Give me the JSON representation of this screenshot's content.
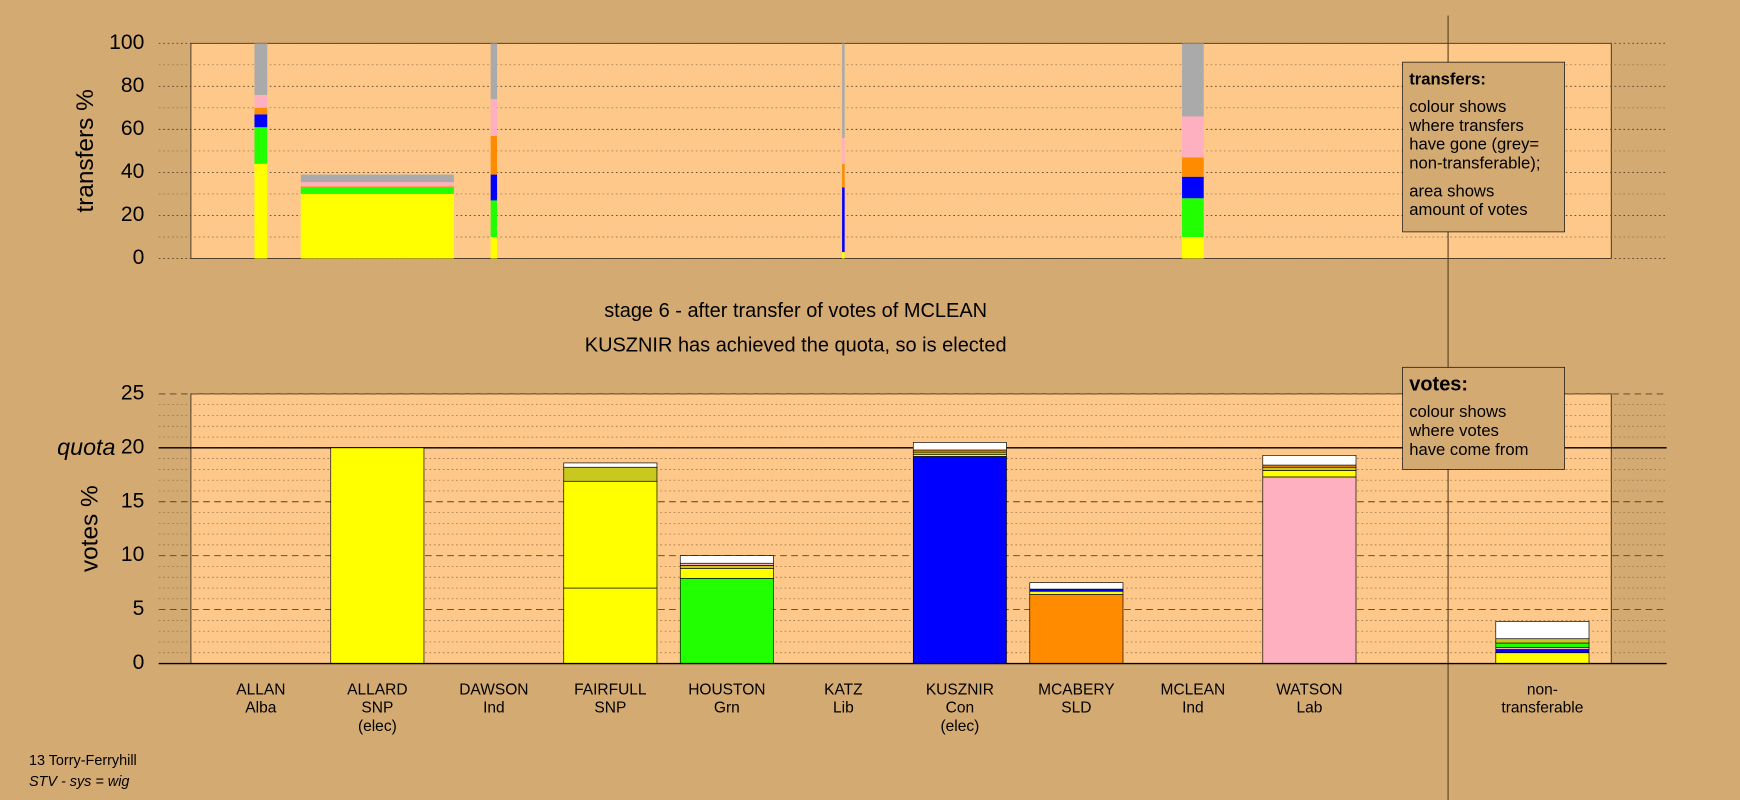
{
  "stage_lines": [
    "stage 6 - after transfer of votes of MCLEAN",
    "KUSZNIR has achieved the quota, so is elected"
  ],
  "footer": [
    "13 Torry-Ferryhill",
    "STV - sys = wig"
  ],
  "chart_data": [
    {
      "type": "transfer-bar",
      "ylabel": "transfers %",
      "ylim": [
        0,
        100
      ],
      "yticks": [
        0,
        20,
        40,
        60,
        80,
        100
      ],
      "minor_yticks": [
        10,
        30,
        50,
        70,
        90
      ],
      "transfer_amounts": [
        1,
        12,
        0.5,
        0,
        0,
        0.2,
        0,
        0,
        1.7,
        0
      ],
      "series": [
        {
          "color": "#ffff00",
          "values": [
            44,
            30,
            10,
            null,
            null,
            3,
            null,
            null,
            10,
            null
          ]
        },
        {
          "color": "#22ff00",
          "values": [
            17,
            3,
            17,
            null,
            null,
            0,
            null,
            null,
            18,
            null
          ]
        },
        {
          "color": "#0000ff",
          "values": [
            6,
            0,
            12,
            null,
            null,
            30,
            null,
            null,
            10,
            null
          ]
        },
        {
          "color": "#ff8c00",
          "values": [
            3,
            0.5,
            18,
            null,
            null,
            11,
            null,
            null,
            9,
            null
          ]
        },
        {
          "color": "#ffb0c0",
          "values": [
            6,
            2,
            17,
            null,
            null,
            12,
            null,
            null,
            19,
            null
          ]
        },
        {
          "color": "#aaaaaa",
          "values": [
            24,
            3.5,
            26,
            null,
            null,
            44,
            null,
            null,
            34,
            null
          ]
        }
      ],
      "legend": {
        "title": "transfers:",
        "paragraphs": [
          [
            "colour shows",
            "where transfers",
            "have gone (grey=",
            "non-transferable);"
          ],
          [
            "area shows",
            "amount of votes"
          ]
        ]
      }
    },
    {
      "type": "stacked-bar",
      "ylabel": "votes %",
      "ylim": [
        0,
        25
      ],
      "yticks": [
        0,
        5,
        10,
        15,
        20,
        25
      ],
      "minor_yticks": [
        1,
        2,
        3,
        4,
        6,
        7,
        8,
        9,
        11,
        12,
        13,
        14,
        16,
        17,
        18,
        19,
        21,
        22,
        23,
        24
      ],
      "quota": {
        "value": 20,
        "label": "quota"
      },
      "categories": [
        [
          "ALLAN",
          "Alba"
        ],
        [
          "ALLARD",
          "SNP",
          "(elec)"
        ],
        [
          "DAWSON",
          "Ind"
        ],
        [
          "FAIRFULL",
          "SNP"
        ],
        [
          "HOUSTON",
          "Grn"
        ],
        [
          "KATZ",
          "Lib"
        ],
        [
          "KUSZNIR",
          "Con",
          "(elec)"
        ],
        [
          "MCABERY",
          "SLD"
        ],
        [
          "MCLEAN",
          "Ind"
        ],
        [
          "WATSON",
          "Lab"
        ],
        [
          "non-",
          "transferable"
        ]
      ],
      "bars": [
        {
          "segments": []
        },
        {
          "segments": [
            {
              "value": 20,
              "color": "#ffff00"
            }
          ]
        },
        {
          "segments": []
        },
        {
          "segments": [
            {
              "value": 7,
              "color": "#ffff00"
            },
            {
              "value": 9.9,
              "color": "#ffff00"
            },
            {
              "value": 1.3,
              "color": "#c8c81e"
            },
            {
              "value": 0.4,
              "color": "#ffffff"
            }
          ]
        },
        {
          "segments": [
            {
              "value": 7.9,
              "color": "#22ff00"
            },
            {
              "value": 0.9,
              "color": "#ffff00"
            },
            {
              "value": 0.3,
              "color": "#c8c81e"
            },
            {
              "value": 0.2,
              "color": "#ffb0c0"
            },
            {
              "value": 0.7,
              "color": "#ffffff"
            }
          ]
        },
        {
          "segments": []
        },
        {
          "segments": [
            {
              "value": 19.2,
              "color": "#0000ff"
            },
            {
              "value": 0.2,
              "color": "#ffff00"
            },
            {
              "value": 0.2,
              "color": "#c8c81e"
            },
            {
              "value": 0.2,
              "color": "#ff8c00"
            },
            {
              "value": 0.7,
              "color": "#ffffff"
            }
          ]
        },
        {
          "segments": [
            {
              "value": 6.4,
              "color": "#ff8c00"
            },
            {
              "value": 0.3,
              "color": "#ffff00"
            },
            {
              "value": 0.2,
              "color": "#0000ff"
            },
            {
              "value": 0.6,
              "color": "#ffffff"
            }
          ]
        },
        {
          "segments": []
        },
        {
          "segments": [
            {
              "value": 17.3,
              "color": "#ffb0c0"
            },
            {
              "value": 0.6,
              "color": "#ffff00"
            },
            {
              "value": 0.3,
              "color": "#c8c81e"
            },
            {
              "value": 0.2,
              "color": "#ff8c00"
            },
            {
              "value": 0.9,
              "color": "#ffffff"
            }
          ]
        },
        {
          "segments": [
            {
              "value": 1,
              "color": "#ffff00"
            },
            {
              "value": 0.3,
              "color": "#0000ff"
            },
            {
              "value": 0.2,
              "color": "#ffb0c0"
            },
            {
              "value": 0.4,
              "color": "#22ff00"
            },
            {
              "value": 0.4,
              "color": "#c8c81e"
            },
            {
              "value": 1.6,
              "color": "#ffffff"
            }
          ]
        }
      ],
      "legend": {
        "title": "votes:",
        "paragraphs": [
          [
            "colour shows",
            "where votes",
            "have come from"
          ]
        ]
      }
    }
  ]
}
